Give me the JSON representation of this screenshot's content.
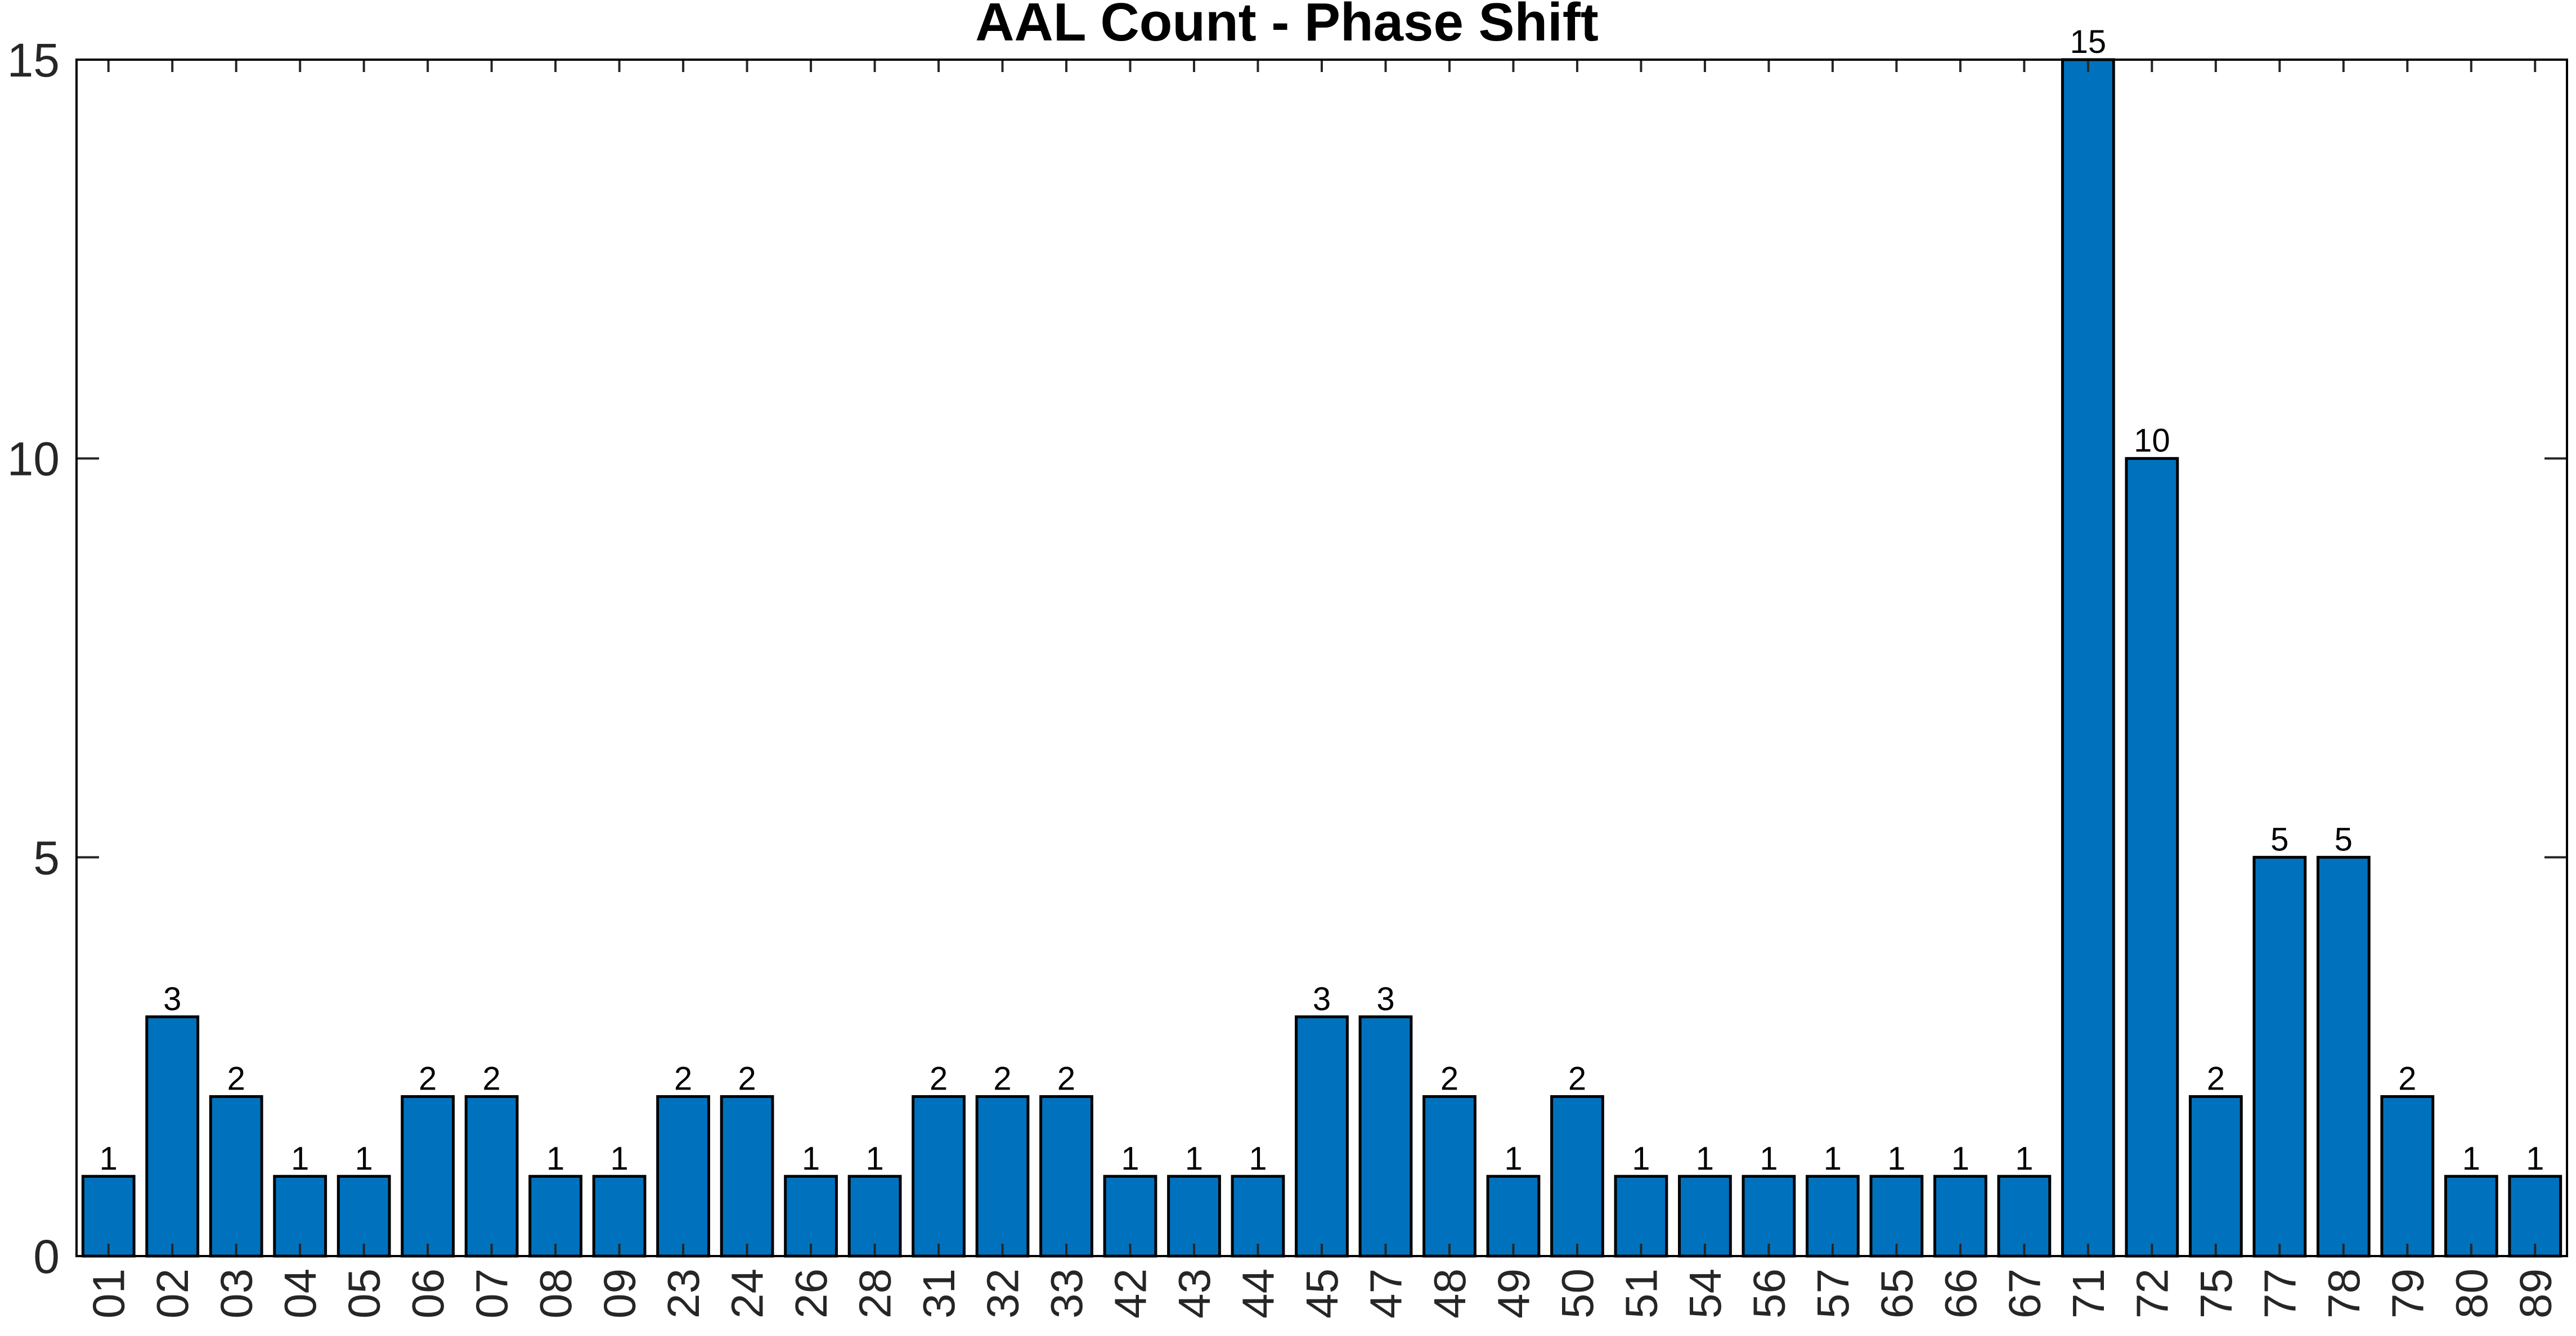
{
  "chart_data": {
    "type": "bar",
    "title": "AAL Count - Phase Shift",
    "xlabel": "",
    "ylabel": "",
    "categories": [
      "01",
      "02",
      "03",
      "04",
      "05",
      "06",
      "07",
      "08",
      "09",
      "23",
      "24",
      "26",
      "28",
      "31",
      "32",
      "33",
      "42",
      "43",
      "44",
      "45",
      "47",
      "48",
      "49",
      "50",
      "51",
      "54",
      "56",
      "57",
      "65",
      "66",
      "67",
      "71",
      "72",
      "75",
      "77",
      "78",
      "79",
      "80",
      "89"
    ],
    "values": [
      1,
      3,
      2,
      1,
      1,
      2,
      2,
      1,
      1,
      2,
      2,
      1,
      1,
      2,
      2,
      2,
      1,
      1,
      1,
      3,
      3,
      2,
      1,
      2,
      1,
      1,
      1,
      1,
      1,
      1,
      1,
      15,
      10,
      2,
      5,
      5,
      2,
      1,
      1
    ],
    "ylim": [
      0,
      15
    ],
    "yticks": [
      0,
      5,
      10,
      15
    ],
    "bar_color": "#0072BD",
    "grid": false,
    "data_labels": true
  }
}
